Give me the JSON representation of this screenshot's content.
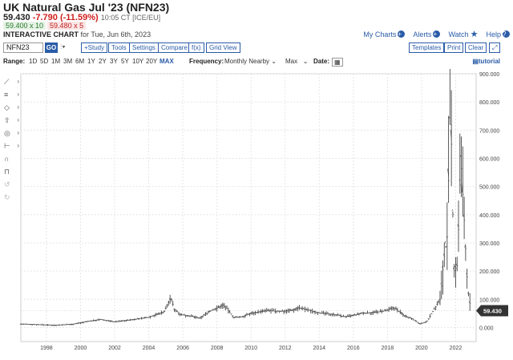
{
  "header": {
    "title": "UK Natural Gas Jul '23 (NFN23)",
    "last": "59.430",
    "change": "-7.790 (-11.59%)",
    "time": "10:05 CT [ICE/EU]",
    "bid": "59.400 x 10",
    "ask": "59.480 x 5",
    "interactive_label": "INTERACTIVE CHART",
    "date_text": "for Tue, Jun 6th, 2023"
  },
  "links": {
    "my_charts": "My Charts",
    "alerts": "Alerts",
    "watch": "Watch",
    "help": "Help"
  },
  "toolbar": {
    "symbol": "NFN23",
    "go": "GO",
    "study": "+Study",
    "tools": "Tools",
    "settings": "Settings",
    "compare": "Compare",
    "fx": "f(x)",
    "grid_view": "Grid View",
    "templates": "Templates",
    "print": "Print",
    "clear": "Clear"
  },
  "range": {
    "label": "Range:",
    "options": [
      "1D",
      "5D",
      "1M",
      "3M",
      "6M",
      "1Y",
      "2Y",
      "3Y",
      "5Y",
      "10Y",
      "20Y",
      "MAX"
    ],
    "active": "MAX",
    "frequency_label": "Frequency:",
    "frequency_value": "Monthly Nearby",
    "max_value": "Max",
    "date_label": "Date:",
    "tutorial": "tutorial"
  },
  "side_tools": [
    "line-tool-icon",
    "fib-tool-icon",
    "shape-tool-icon",
    "arrow-tool-icon",
    "pattern-tool-icon",
    "measure-tool-icon",
    "magnet-icon",
    "lock-icon",
    "undo-icon",
    "redo-icon"
  ],
  "chart_data": {
    "type": "line",
    "style": "ohlc",
    "frequency": "Monthly Nearby",
    "x_ticks": [
      "1998",
      "2000",
      "2002",
      "2004",
      "2006",
      "2008",
      "2010",
      "2012",
      "2014",
      "2016",
      "2018",
      "2020",
      "2022"
    ],
    "y_ticks": [
      "0.000",
      "100.000",
      "200.000",
      "300.000",
      "400.000",
      "500.000",
      "600.000",
      "700.000",
      "800.000",
      "900.000"
    ],
    "ylim": [
      -50,
      900
    ],
    "last_price_label": "59.430",
    "last_price": 59.43,
    "series": [
      {
        "x": [
          1997.0,
          1998.0,
          1999.0,
          2000.0,
          2001.0,
          2001.7,
          2002.5,
          2003.5,
          2004.5,
          2005.4,
          2005.8,
          2006.0,
          2006.4,
          2007.0,
          2007.5,
          2008.0,
          2008.5,
          2008.9,
          2009.5,
          2010.0,
          2010.5,
          2011.0,
          2011.5,
          2012.0,
          2012.5,
          2013.0,
          2013.3,
          2013.8,
          2014.5,
          2015.0,
          2015.5,
          2016.0,
          2016.5,
          2017.0,
          2017.5,
          2018.0,
          2018.5,
          2018.9,
          2019.5,
          2020.0,
          2020.4,
          2020.8,
          2021.0,
          2021.3,
          2021.6,
          2021.8,
          2022.0,
          2022.2,
          2022.4,
          2022.6,
          2022.8,
          2023.0,
          2023.2,
          2023.4
        ],
        "values": [
          12,
          10,
          8,
          11,
          22,
          28,
          20,
          27,
          36,
          55,
          105,
          65,
          45,
          40,
          32,
          55,
          68,
          80,
          35,
          38,
          50,
          55,
          60,
          57,
          58,
          62,
          70,
          62,
          52,
          48,
          45,
          38,
          42,
          50,
          52,
          55,
          60,
          70,
          42,
          30,
          12,
          20,
          40,
          70,
          100,
          240,
          320,
          800,
          200,
          220,
          600,
          380,
          140,
          59
        ]
      }
    ]
  }
}
